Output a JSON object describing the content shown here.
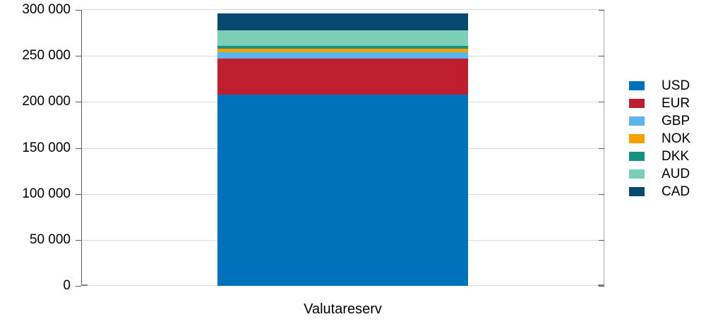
{
  "chart_data": {
    "type": "bar",
    "stacked": true,
    "title": "",
    "xlabel": "Valutareserv",
    "ylabel": "",
    "categories": [
      "Valutareserv"
    ],
    "series": [
      {
        "name": "USD",
        "values": [
          208000
        ],
        "color": "#0072BC"
      },
      {
        "name": "EUR",
        "values": [
          39000
        ],
        "color": "#BE1E2D"
      },
      {
        "name": "GBP",
        "values": [
          7000
        ],
        "color": "#5BB4EA"
      },
      {
        "name": "NOK",
        "values": [
          4000
        ],
        "color": "#F5A100"
      },
      {
        "name": "DKK",
        "values": [
          3000
        ],
        "color": "#16907F"
      },
      {
        "name": "AUD",
        "values": [
          17000
        ],
        "color": "#7BCFB4"
      },
      {
        "name": "CAD",
        "values": [
          18000
        ],
        "color": "#07496F"
      }
    ],
    "ylim": [
      0,
      300000
    ],
    "ytick_step": 50000,
    "ytick_labels": [
      "0",
      "50 000",
      "100 000",
      "150 000",
      "200 000",
      "250 000",
      "300 000"
    ],
    "grid": "horizontal",
    "legend_position": "right",
    "legend_entries": [
      "USD",
      "EUR",
      "GBP",
      "NOK",
      "DKK",
      "AUD",
      "CAD"
    ]
  }
}
